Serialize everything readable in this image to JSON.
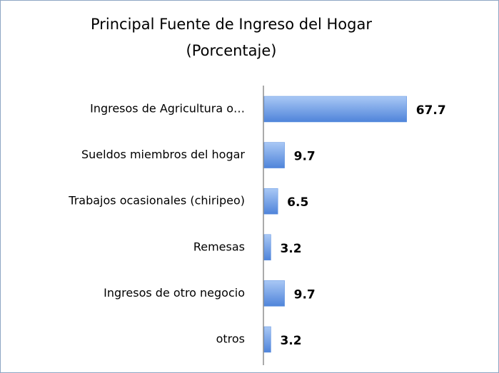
{
  "chart_data": {
    "type": "bar",
    "orientation": "horizontal",
    "title": "Principal Fuente de Ingreso del Hogar",
    "subtitle": "(Porcentaje)",
    "categories": [
      "Ingresos de Agricultura o…",
      "Sueldos miembros del hogar",
      "Trabajos ocasionales (chiripeo)",
      "Remesas",
      "Ingresos de otro negocio",
      "otros"
    ],
    "values": [
      67.7,
      9.7,
      6.5,
      3.2,
      9.7,
      3.2
    ],
    "color": "#5b8fe0"
  }
}
